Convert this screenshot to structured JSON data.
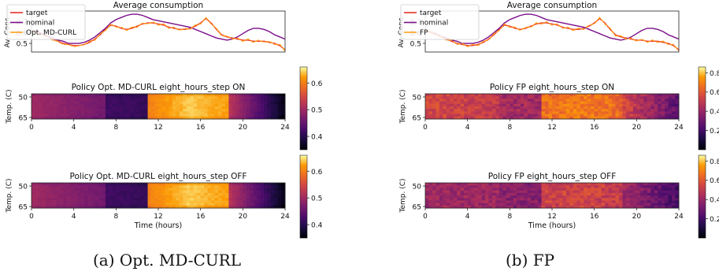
{
  "captions": [
    "(a) Opt. MD-CURL",
    "(b) FP"
  ],
  "colors": {
    "target": "#e8302a",
    "nominal": "#7b0e8a",
    "method": "#ff9e1a"
  },
  "chart_data": [
    {
      "type": "line",
      "title": "Average consumption",
      "ylabel": "Av. Cons.",
      "x": [
        0,
        0.5,
        1,
        1.5,
        2,
        2.5,
        3,
        3.5,
        4,
        4.5,
        5,
        5.5,
        6,
        6.5,
        7,
        7.5,
        8,
        8.5,
        9,
        9.5,
        10,
        10.5,
        11,
        11.5,
        12,
        12.5,
        13,
        13.5,
        14,
        14.5,
        15,
        15.5,
        16,
        16.5,
        17,
        17.5,
        18,
        18.5,
        19,
        19.5,
        20,
        20.5,
        21,
        21.5,
        22,
        22.5,
        23,
        23.5,
        24
      ],
      "xlim": [
        0,
        24
      ],
      "ylim": [
        0.42,
        0.8
      ],
      "yticks": [
        0.5,
        0.6,
        0.7
      ],
      "legend_position": "upper-left",
      "series": [
        {
          "name": "target",
          "values": [
            0.62,
            0.6,
            0.58,
            0.56,
            0.54,
            0.52,
            0.5,
            0.49,
            0.48,
            0.48,
            0.49,
            0.51,
            0.54,
            0.58,
            0.63,
            0.67,
            0.66,
            0.64,
            0.63,
            0.64,
            0.66,
            0.68,
            0.69,
            0.69,
            0.68,
            0.67,
            0.65,
            0.64,
            0.63,
            0.63,
            0.64,
            0.66,
            0.69,
            0.73,
            0.69,
            0.63,
            0.58,
            0.56,
            0.55,
            0.54,
            0.53,
            0.53,
            0.52,
            0.52,
            0.52,
            0.51,
            0.5,
            0.48,
            0.44
          ]
        },
        {
          "name": "nominal",
          "values": [
            0.62,
            0.61,
            0.59,
            0.57,
            0.55,
            0.53,
            0.52,
            0.5,
            0.5,
            0.5,
            0.51,
            0.53,
            0.56,
            0.6,
            0.64,
            0.69,
            0.72,
            0.74,
            0.76,
            0.77,
            0.77,
            0.76,
            0.74,
            0.72,
            0.71,
            0.7,
            0.69,
            0.68,
            0.67,
            0.66,
            0.65,
            0.63,
            0.61,
            0.59,
            0.57,
            0.55,
            0.54,
            0.53,
            0.54,
            0.56,
            0.59,
            0.62,
            0.64,
            0.64,
            0.63,
            0.61,
            0.58,
            0.56,
            0.54
          ]
        },
        {
          "name": "Opt. MD-CURL",
          "values": [
            0.62,
            0.6,
            0.58,
            0.56,
            0.53,
            0.52,
            0.49,
            0.49,
            0.47,
            0.48,
            0.49,
            0.52,
            0.53,
            0.59,
            0.62,
            0.68,
            0.65,
            0.65,
            0.62,
            0.65,
            0.65,
            0.69,
            0.68,
            0.7,
            0.67,
            0.68,
            0.64,
            0.65,
            0.62,
            0.64,
            0.63,
            0.67,
            0.68,
            0.74,
            0.68,
            0.64,
            0.57,
            0.57,
            0.54,
            0.55,
            0.52,
            0.54,
            0.51,
            0.53,
            0.51,
            0.52,
            0.49,
            0.49,
            0.43
          ]
        }
      ]
    },
    {
      "type": "heatmap",
      "title": "Policy Opt. MD-CURL eight_hours_step ON",
      "ylabel": "Temp. (C)",
      "xticks": [
        0,
        4,
        8,
        12,
        16,
        20,
        24
      ],
      "yticks": [
        50,
        65
      ],
      "colorbar_ticks": [
        0.4,
        0.5,
        0.6
      ],
      "colorbar_range": [
        0.35,
        0.66
      ],
      "segments": [
        {
          "from": 0,
          "to": 7,
          "start": 0.5,
          "end": 0.46
        },
        {
          "from": 7,
          "to": 11,
          "start": 0.42,
          "end": 0.41
        },
        {
          "from": 11,
          "to": 18.8,
          "start": 0.6,
          "end": 0.62
        },
        {
          "from": 18.8,
          "to": 24,
          "start": 0.52,
          "end": 0.36
        }
      ]
    },
    {
      "type": "heatmap",
      "title": "Policy Opt. MD-CURL eight_hours_step OFF",
      "ylabel": "Temp. (C)",
      "xlabel": "Time (hours)",
      "xticks": [
        0,
        4,
        8,
        12,
        16,
        20,
        24
      ],
      "yticks": [
        50,
        65
      ],
      "colorbar_ticks": [
        0.4,
        0.5,
        0.6
      ],
      "colorbar_range": [
        0.35,
        0.66
      ],
      "segments": [
        {
          "from": 0,
          "to": 7,
          "start": 0.5,
          "end": 0.46
        },
        {
          "from": 7,
          "to": 11,
          "start": 0.42,
          "end": 0.41
        },
        {
          "from": 11,
          "to": 18.8,
          "start": 0.6,
          "end": 0.62
        },
        {
          "from": 18.8,
          "to": 24,
          "start": 0.52,
          "end": 0.36
        }
      ]
    },
    {
      "type": "line",
      "title": "Average consumption",
      "ylabel": "Av. Cons.",
      "x": [
        0,
        0.5,
        1,
        1.5,
        2,
        2.5,
        3,
        3.5,
        4,
        4.5,
        5,
        5.5,
        6,
        6.5,
        7,
        7.5,
        8,
        8.5,
        9,
        9.5,
        10,
        10.5,
        11,
        11.5,
        12,
        12.5,
        13,
        13.5,
        14,
        14.5,
        15,
        15.5,
        16,
        16.5,
        17,
        17.5,
        18,
        18.5,
        19,
        19.5,
        20,
        20.5,
        21,
        21.5,
        22,
        22.5,
        23,
        23.5,
        24
      ],
      "xlim": [
        0,
        24
      ],
      "ylim": [
        0.42,
        0.8
      ],
      "yticks": [
        0.5,
        0.6,
        0.7
      ],
      "legend_position": "upper-left",
      "series": [
        {
          "name": "target",
          "values": [
            0.62,
            0.6,
            0.58,
            0.56,
            0.54,
            0.52,
            0.5,
            0.49,
            0.48,
            0.48,
            0.49,
            0.51,
            0.54,
            0.58,
            0.63,
            0.67,
            0.66,
            0.64,
            0.63,
            0.64,
            0.66,
            0.68,
            0.69,
            0.69,
            0.68,
            0.67,
            0.65,
            0.64,
            0.63,
            0.63,
            0.64,
            0.66,
            0.69,
            0.73,
            0.69,
            0.63,
            0.58,
            0.56,
            0.55,
            0.54,
            0.53,
            0.53,
            0.52,
            0.52,
            0.52,
            0.51,
            0.5,
            0.48,
            0.44
          ]
        },
        {
          "name": "nominal",
          "values": [
            0.62,
            0.61,
            0.59,
            0.57,
            0.55,
            0.53,
            0.52,
            0.5,
            0.5,
            0.5,
            0.51,
            0.53,
            0.56,
            0.6,
            0.64,
            0.69,
            0.72,
            0.74,
            0.76,
            0.77,
            0.77,
            0.76,
            0.74,
            0.72,
            0.71,
            0.7,
            0.69,
            0.68,
            0.67,
            0.66,
            0.65,
            0.63,
            0.61,
            0.59,
            0.57,
            0.55,
            0.54,
            0.53,
            0.54,
            0.56,
            0.59,
            0.62,
            0.64,
            0.64,
            0.63,
            0.61,
            0.58,
            0.56,
            0.54
          ]
        },
        {
          "name": "FP",
          "values": [
            0.62,
            0.61,
            0.58,
            0.57,
            0.53,
            0.53,
            0.49,
            0.5,
            0.47,
            0.49,
            0.48,
            0.52,
            0.53,
            0.59,
            0.62,
            0.68,
            0.65,
            0.65,
            0.62,
            0.65,
            0.65,
            0.69,
            0.68,
            0.7,
            0.67,
            0.68,
            0.64,
            0.65,
            0.62,
            0.64,
            0.63,
            0.67,
            0.68,
            0.74,
            0.68,
            0.64,
            0.57,
            0.57,
            0.54,
            0.55,
            0.52,
            0.54,
            0.51,
            0.53,
            0.51,
            0.52,
            0.49,
            0.49,
            0.43
          ]
        }
      ]
    },
    {
      "type": "heatmap",
      "title": "Policy FP eight_hours_step ON",
      "ylabel": "Temp. (C)",
      "xticks": [
        0,
        4,
        8,
        12,
        16,
        20,
        24
      ],
      "yticks": [
        50,
        65
      ],
      "colorbar_ticks": [
        0.2,
        0.4,
        0.6,
        0.8
      ],
      "colorbar_range": [
        0.0,
        0.86
      ],
      "segments": [
        {
          "from": 0,
          "to": 7,
          "start": 0.55,
          "end": 0.5
        },
        {
          "from": 7,
          "to": 11,
          "start": 0.42,
          "end": 0.42
        },
        {
          "from": 11,
          "to": 18.8,
          "start": 0.66,
          "end": 0.64
        },
        {
          "from": 18.8,
          "to": 24,
          "start": 0.55,
          "end": 0.25
        }
      ]
    },
    {
      "type": "heatmap",
      "title": "Policy FP eight_hours_step OFF",
      "ylabel": "Temp. (C)",
      "xlabel": "Time (hours)",
      "xticks": [
        0,
        4,
        8,
        12,
        16,
        20,
        24
      ],
      "yticks": [
        50,
        65
      ],
      "colorbar_ticks": [
        0.2,
        0.4,
        0.6,
        0.8
      ],
      "colorbar_range": [
        0.0,
        0.86
      ],
      "segments": [
        {
          "from": 0,
          "to": 7,
          "start": 0.42,
          "end": 0.4
        },
        {
          "from": 7,
          "to": 11,
          "start": 0.36,
          "end": 0.36
        },
        {
          "from": 11,
          "to": 18.8,
          "start": 0.52,
          "end": 0.5
        },
        {
          "from": 18.8,
          "to": 24,
          "start": 0.42,
          "end": 0.2
        }
      ]
    }
  ]
}
